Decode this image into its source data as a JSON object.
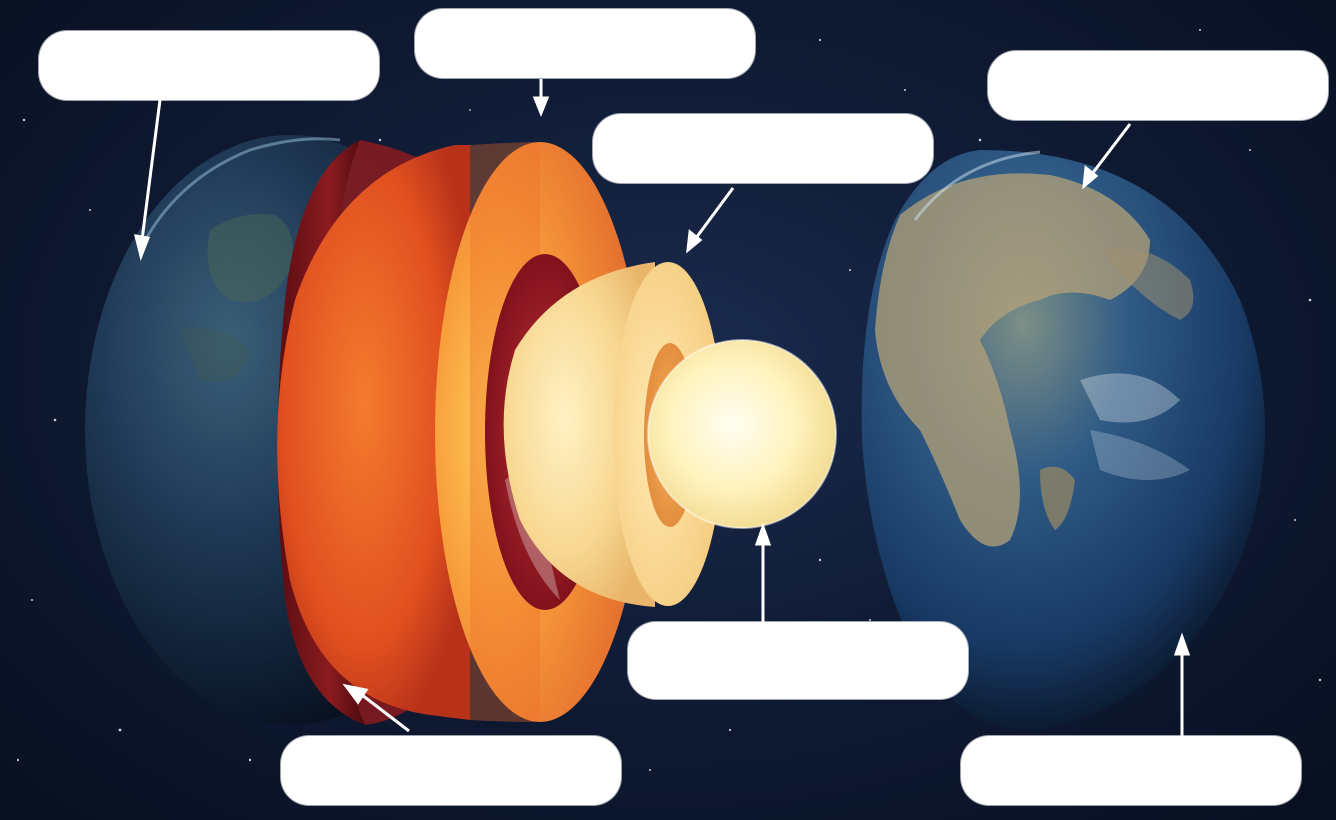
{
  "diagram": {
    "labels": [
      "",
      "",
      "",
      "",
      "",
      "",
      ""
    ],
    "colors": {
      "space": "#0d1830",
      "ocean": "#1d3f6e",
      "land": "#b9a779",
      "crust_red": "#c92a1c",
      "mantle_orange": "#f0752c",
      "outer_core": "#f7d9a2",
      "inner_core": "#fff4c8",
      "label_box": "#ffffff",
      "arrow": "#ffffff"
    }
  }
}
